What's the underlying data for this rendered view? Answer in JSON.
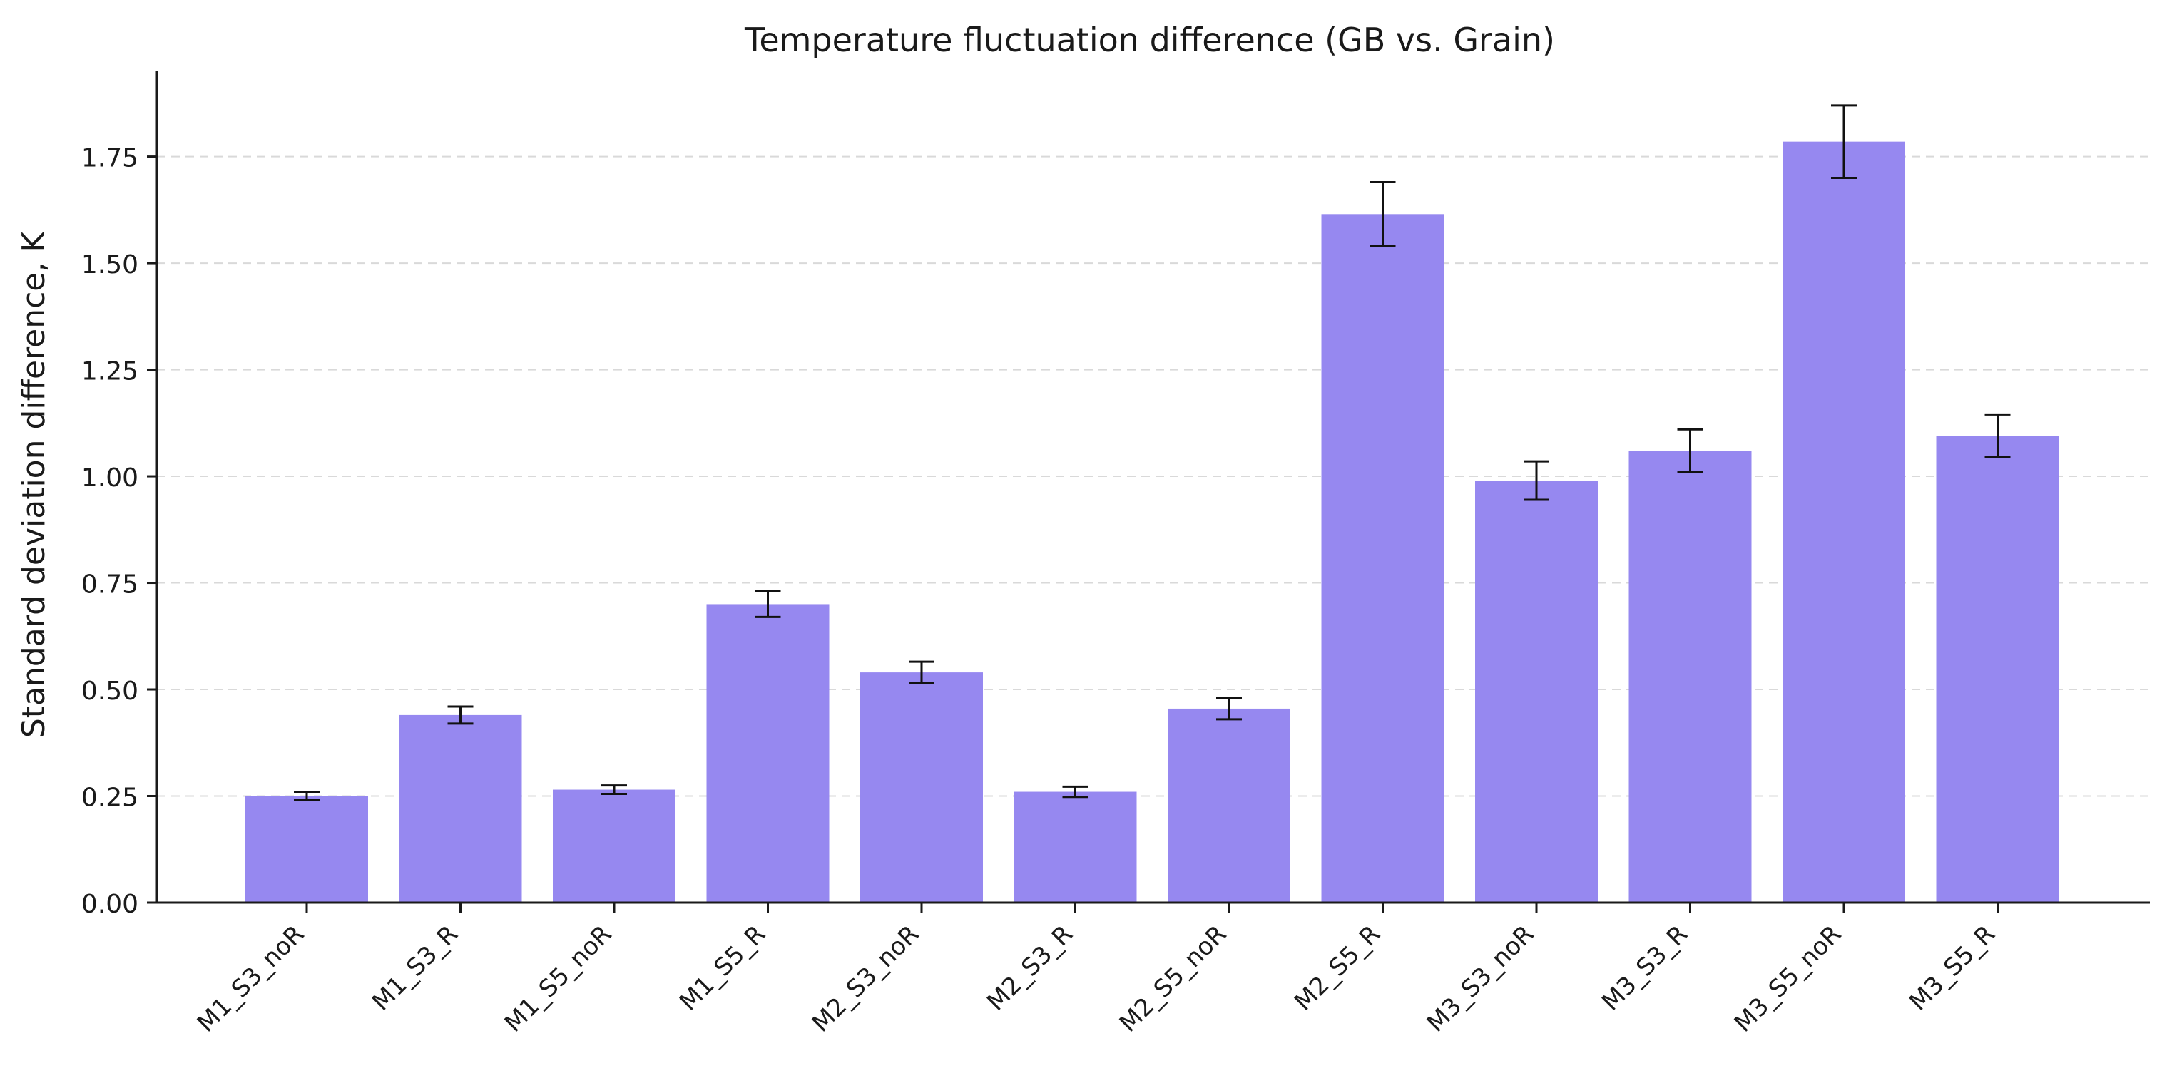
{
  "chart_data": {
    "type": "bar",
    "title": "Temperature fluctuation difference (GB vs. Grain)",
    "xlabel": "",
    "ylabel": "Standard deviation difference, K",
    "ylim": [
      0,
      1.95
    ],
    "yticks": [
      0.0,
      0.25,
      0.5,
      0.75,
      1.0,
      1.25,
      1.5,
      1.75
    ],
    "ytick_labels": [
      "0.00",
      "0.25",
      "0.50",
      "0.75",
      "1.00",
      "1.25",
      "1.50",
      "1.75"
    ],
    "grid": "y-dashed",
    "bar_color": "#9688f0",
    "categories": [
      "M1_S3_noR",
      "M1_S3_R",
      "M1_S5_noR",
      "M1_S5_R",
      "M2_S3_noR",
      "M2_S3_R",
      "M2_S5_noR",
      "M2_S5_R",
      "M3_S3_noR",
      "M3_S3_R",
      "M3_S5_noR",
      "M3_S5_R"
    ],
    "values": [
      0.25,
      0.44,
      0.265,
      0.7,
      0.54,
      0.26,
      0.455,
      1.615,
      0.99,
      1.06,
      1.785,
      1.095
    ],
    "errors": [
      0.01,
      0.02,
      0.01,
      0.03,
      0.025,
      0.012,
      0.025,
      0.075,
      0.045,
      0.05,
      0.085,
      0.05
    ]
  }
}
